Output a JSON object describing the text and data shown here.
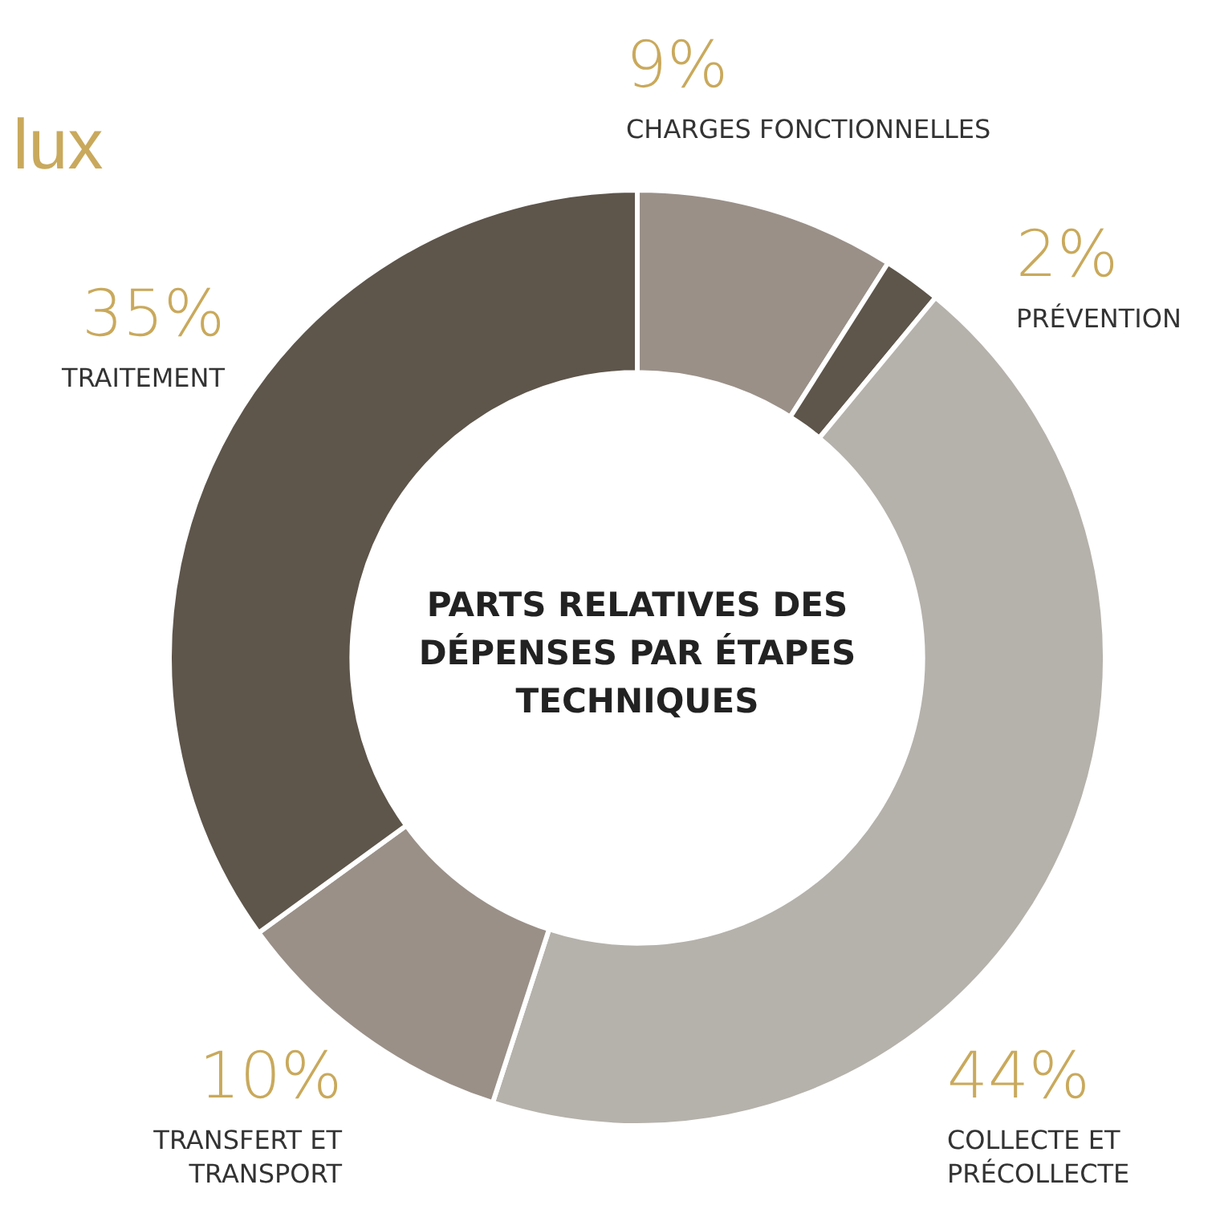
{
  "chart_data": {
    "type": "donut",
    "title": "PARTS RELATIVES DES DÉPENSES PAR ÉTAPES TECHNIQUES",
    "annotations": [
      "lux"
    ],
    "categories": [
      "CHARGES FONCTIONNELLES",
      "PRÉVENTION",
      "COLLECTE ET PRÉCOLLECTE",
      "TRANSFERT ET TRANSPORT",
      "TRAITEMENT"
    ],
    "values": [
      9,
      2,
      44,
      10,
      35
    ],
    "value_labels": [
      "9%",
      "2%",
      "44%",
      "10%",
      "35%"
    ],
    "colors": [
      "#9a9088",
      "#5e554b",
      "#b5b1ab",
      "#9a9088",
      "#5e554b"
    ],
    "legend": false
  }
}
